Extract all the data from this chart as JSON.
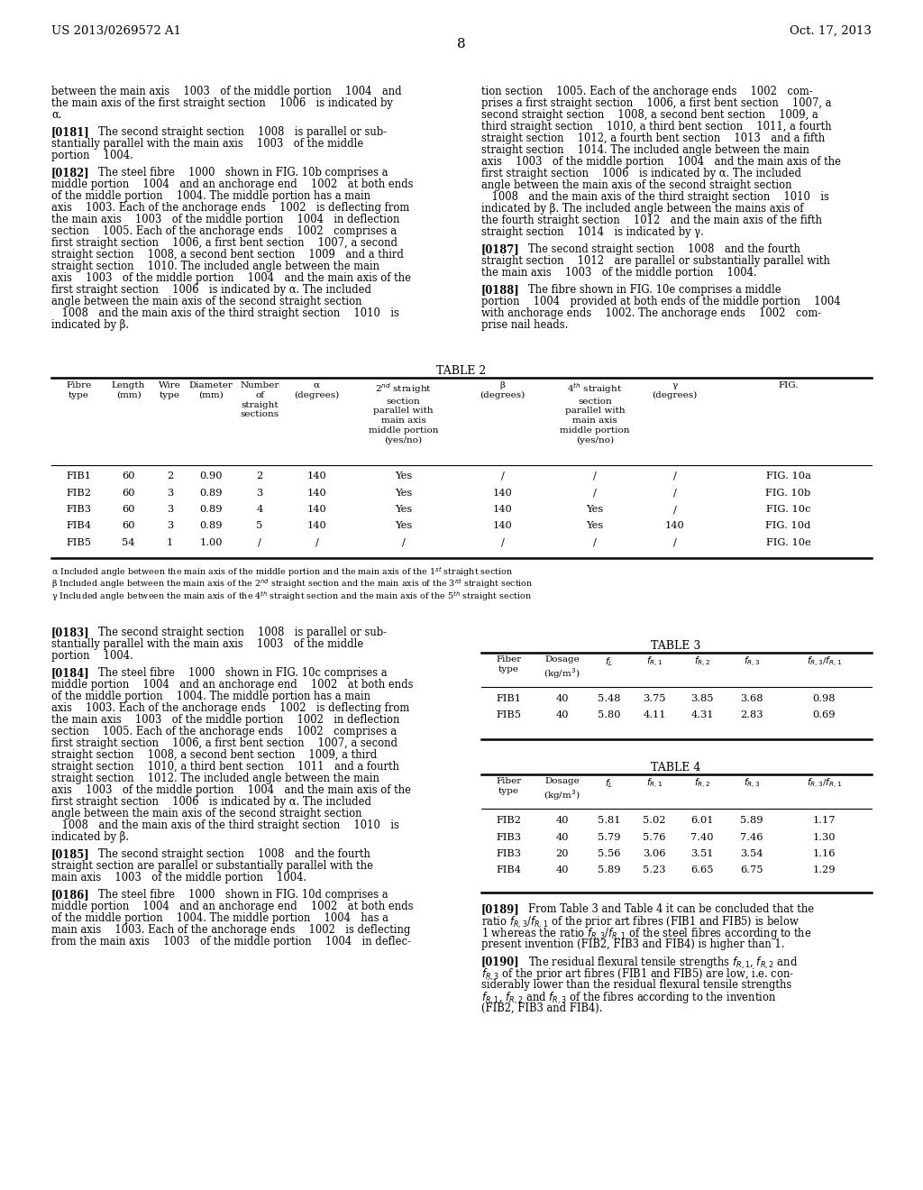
{
  "page_num": "8",
  "patent_left": "US 2013/0269572 A1",
  "patent_right": "Oct. 17, 2013",
  "bg_color": "#ffffff"
}
